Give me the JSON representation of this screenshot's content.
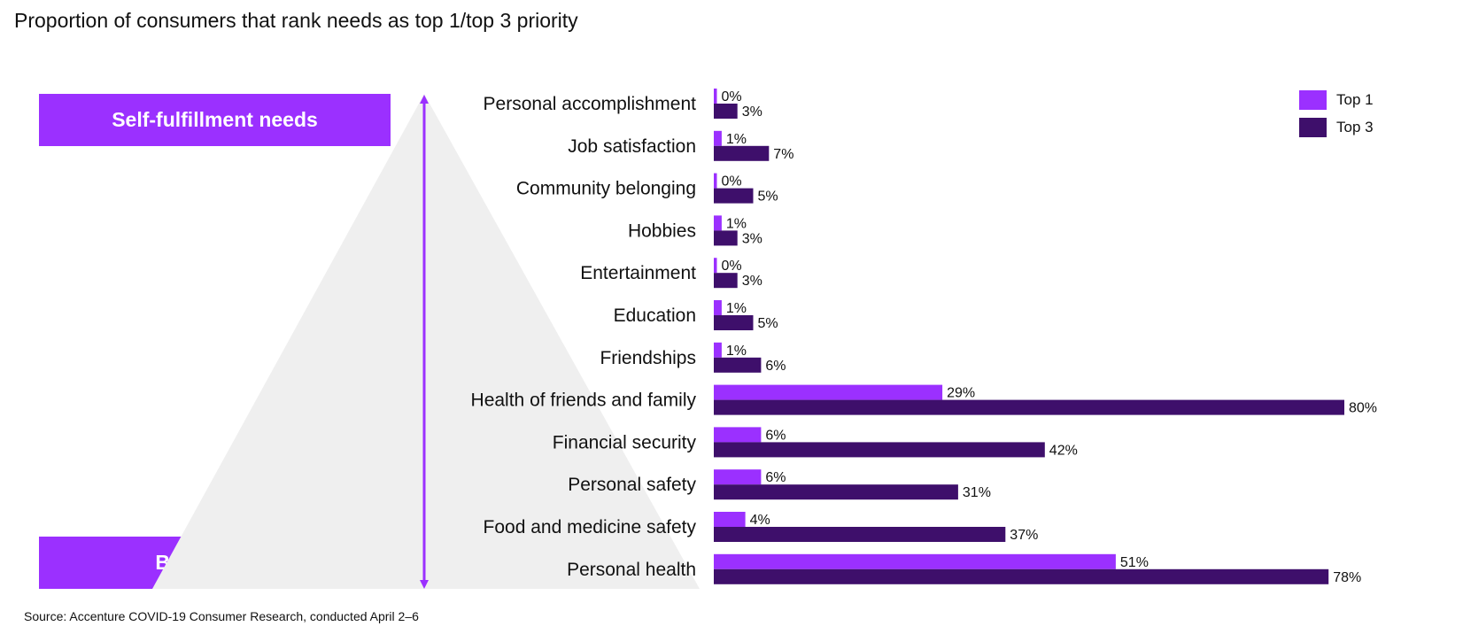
{
  "title": "Proportion of consumers that rank needs as top 1/top 3 priority",
  "source": "Source: Accenture COVID-19 Consumer Research, conducted April 2–6",
  "tiers": {
    "top": "Self-fulfillment needs",
    "bottom": "Basic needs"
  },
  "colors": {
    "top1": "#9b30ff",
    "top3": "#3e0f6b",
    "pyramid": "#efefef",
    "arrow": "#9b30ff"
  },
  "chart_data": {
    "type": "bar",
    "orientation": "horizontal",
    "categories": [
      "Personal accomplishment",
      "Job satisfaction",
      "Community belonging",
      "Hobbies",
      "Entertainment",
      "Education",
      "Friendships",
      "Health of friends and family",
      "Financial security",
      "Personal safety",
      "Food and medicine safety",
      "Personal health"
    ],
    "series": [
      {
        "name": "Top 1",
        "values": [
          0,
          1,
          0,
          1,
          0,
          1,
          1,
          29,
          6,
          6,
          4,
          51
        ],
        "labels": [
          "0%",
          "1%",
          "0%",
          "1%",
          "0%",
          "1%",
          "1%",
          "29%",
          "6%",
          "6%",
          "4%",
          "51%"
        ]
      },
      {
        "name": "Top 3",
        "values": [
          3,
          7,
          5,
          3,
          3,
          5,
          6,
          80,
          42,
          31,
          37,
          78
        ],
        "labels": [
          "3%",
          "7%",
          "5%",
          "3%",
          "3%",
          "5%",
          "6%",
          "80%",
          "42%",
          "31%",
          "37%",
          "78%"
        ]
      }
    ],
    "legend": "top-right",
    "grid": false
  }
}
